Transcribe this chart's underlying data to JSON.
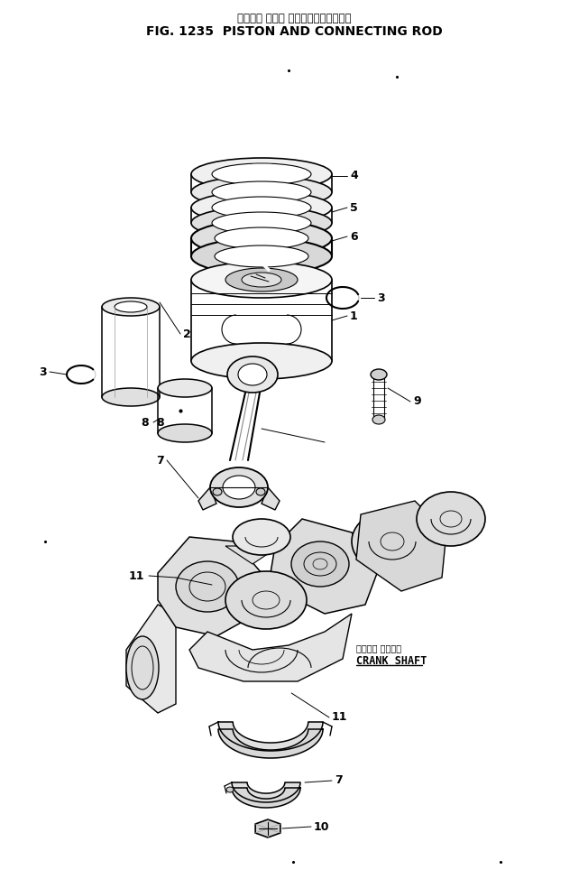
{
  "title_japanese": "ピストン および コネクティングロッド",
  "title_english": "FIG. 1235  PISTON AND CONNECTING ROD",
  "background_color": "#ffffff",
  "line_color": "#000000",
  "fig_width": 6.52,
  "fig_height": 9.74,
  "dpi": 100
}
